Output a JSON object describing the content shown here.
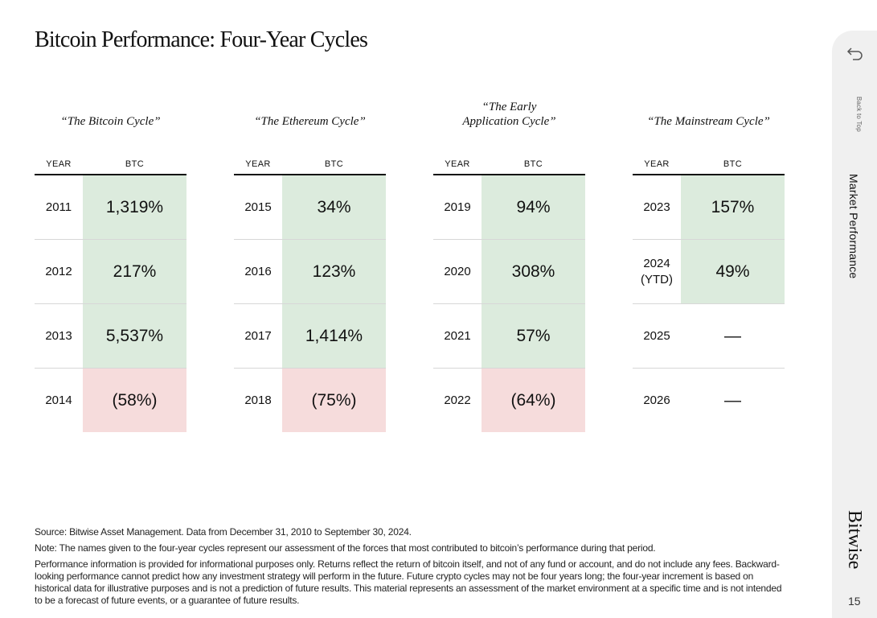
{
  "title": "Bitcoin Performance: Four-Year Cycles",
  "headers": {
    "year": "YEAR",
    "value": "BTC"
  },
  "cycles": [
    {
      "title": "“The Bitcoin Cycle”",
      "rows": [
        {
          "year": "2011",
          "value": "1,319%",
          "status": "positive"
        },
        {
          "year": "2012",
          "value": "217%",
          "status": "positive"
        },
        {
          "year": "2013",
          "value": "5,537%",
          "status": "positive"
        },
        {
          "year": "2014",
          "value": "(58%)",
          "status": "negative"
        }
      ]
    },
    {
      "title": "“The Ethereum Cycle”",
      "rows": [
        {
          "year": "2015",
          "value": "34%",
          "status": "positive"
        },
        {
          "year": "2016",
          "value": "123%",
          "status": "positive"
        },
        {
          "year": "2017",
          "value": "1,414%",
          "status": "positive"
        },
        {
          "year": "2018",
          "value": "(75%)",
          "status": "negative"
        }
      ]
    },
    {
      "title": "“The Early\nApplication Cycle”",
      "rows": [
        {
          "year": "2019",
          "value": "94%",
          "status": "positive"
        },
        {
          "year": "2020",
          "value": "308%",
          "status": "positive"
        },
        {
          "year": "2021",
          "value": "57%",
          "status": "positive"
        },
        {
          "year": "2022",
          "value": "(64%)",
          "status": "negative"
        }
      ]
    },
    {
      "title": "“The Mainstream Cycle”",
      "rows": [
        {
          "year": "2023",
          "value": "157%",
          "status": "positive"
        },
        {
          "year": "2024\n(YTD)",
          "value": "49%",
          "status": "positive"
        },
        {
          "year": "2025",
          "value": "—",
          "status": "none"
        },
        {
          "year": "2026",
          "value": "—",
          "status": "none"
        }
      ]
    }
  ],
  "notes": {
    "source": "Source: Bitwise Asset Management. Data from December 31, 2010 to September 30, 2024.",
    "note": "Note: The names given to the four-year cycles represent our assessment of the forces that most contributed to bitcoin’s performance during that period.",
    "disclaimer": "Performance information is provided for informational purposes only. Returns reflect the return of bitcoin itself, and not of any fund or account, and do not include any fees. Backward-looking performance cannot predict how any investment strategy will perform in the future. Future crypto cycles may not be four years long; the four-year increment is based on historical data for illustrative purposes and is not a prediction of future results. This material represents an assessment of the market environment at a specific time and is not intended to be a forecast of future events, or a guarantee of future results."
  },
  "sidebar": {
    "back_label": "Back to Top",
    "back_icon": "back-arrow-icon",
    "section": "Market Performance",
    "brand": "Bitwise",
    "page_number": "15"
  },
  "colors": {
    "positive": "#dcebdd",
    "negative": "#f6dcdc",
    "tab_background": "#f0f0f0"
  }
}
